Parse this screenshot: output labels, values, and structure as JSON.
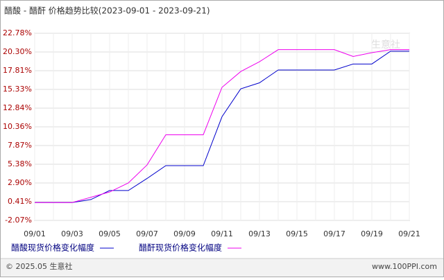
{
  "chart_data": {
    "type": "line",
    "title": "醋酸 - 醋酐 价格趋势比较(2023-09-01 - 2023-09-21)",
    "categories": [
      "09/01",
      null,
      "09/03",
      null,
      "09/05",
      null,
      "09/07",
      null,
      "09/09",
      null,
      "09/11",
      null,
      "09/13",
      null,
      "09/15",
      null,
      "09/17",
      null,
      "09/19",
      null,
      "09/21"
    ],
    "series": [
      {
        "name": "醋酸现货价格变化幅度",
        "color": "#0000cc",
        "values": [
          0.3,
          0.3,
          0.3,
          0.7,
          1.9,
          1.9,
          3.5,
          5.2,
          5.2,
          5.2,
          11.7,
          15.4,
          16.2,
          17.9,
          17.9,
          17.9,
          17.9,
          18.7,
          18.7,
          20.4,
          20.4
        ]
      },
      {
        "name": "醋酐现货价格变化幅度",
        "color": "#ee00ee",
        "values": [
          0.3,
          0.3,
          0.3,
          1.0,
          1.7,
          2.9,
          5.3,
          9.3,
          9.3,
          9.3,
          15.6,
          17.7,
          19.0,
          20.6,
          20.6,
          20.6,
          20.6,
          19.7,
          20.2,
          20.6,
          20.6
        ]
      }
    ],
    "ylim": [
      -2.07,
      22.78
    ],
    "yticks": [
      {
        "value": 22.78,
        "label": "22.78%"
      },
      {
        "value": 20.3,
        "label": "20.30%"
      },
      {
        "value": 17.81,
        "label": "17.81%"
      },
      {
        "value": 15.33,
        "label": "15.33%"
      },
      {
        "value": 12.84,
        "label": "12.84%"
      },
      {
        "value": 10.36,
        "label": "10.36%"
      },
      {
        "value": 7.87,
        "label": "7.87%"
      },
      {
        "value": 5.38,
        "label": "5.38%"
      },
      {
        "value": 2.9,
        "label": "2.90%"
      },
      {
        "value": 0.41,
        "label": "0.41%"
      },
      {
        "value": -2.07,
        "label": "-2.07%"
      }
    ],
    "grid": true,
    "watermark": "生意社",
    "footer_left": "© 2025.05 生意社",
    "footer_right": "www.100PPI.com"
  }
}
